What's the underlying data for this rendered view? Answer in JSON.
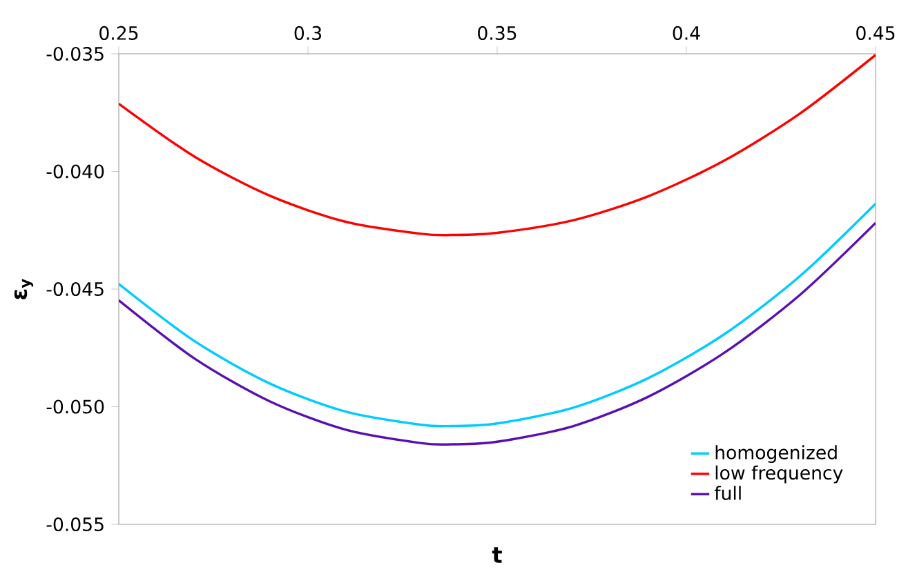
{
  "chart_data": {
    "type": "line",
    "xlabel": "t",
    "ylabel": "ε$_{y}$",
    "x": [
      0.25,
      0.27,
      0.29,
      0.31,
      0.33,
      0.338,
      0.35,
      0.37,
      0.39,
      0.41,
      0.43,
      0.45
    ],
    "series": [
      {
        "name": "homogenized",
        "color": "#00ccff",
        "values": [
          -0.04478,
          -0.04721,
          -0.04902,
          -0.05021,
          -0.05077,
          -0.05082,
          -0.05071,
          -0.05005,
          -0.04878,
          -0.04692,
          -0.04445,
          -0.04137
        ]
      },
      {
        "name": "low frequency",
        "color": "#ff0000",
        "values": [
          -0.03712,
          -0.03937,
          -0.04104,
          -0.04214,
          -0.04265,
          -0.0427,
          -0.04261,
          -0.04208,
          -0.04105,
          -0.03954,
          -0.03754,
          -0.03505
        ]
      },
      {
        "name": "full",
        "color": "#5a10b0",
        "values": [
          -0.04548,
          -0.04795,
          -0.04978,
          -0.05098,
          -0.05155,
          -0.0516,
          -0.05149,
          -0.05083,
          -0.04957,
          -0.04771,
          -0.04525,
          -0.04219
        ]
      }
    ],
    "xlim": [
      0.25,
      0.45
    ],
    "ylim": [
      -0.055,
      -0.035
    ],
    "xticks": [
      0.25,
      0.3,
      0.35,
      0.4,
      0.45
    ],
    "yticks": [
      -0.055,
      {
        "value": -0.05,
        "label": "-0.050"
      },
      -0.045,
      {
        "value": -0.04,
        "label": "-0.040"
      },
      -0.035
    ],
    "grid": false,
    "legend": "bottom right",
    "marker": "none",
    "line_style": "solid"
  }
}
